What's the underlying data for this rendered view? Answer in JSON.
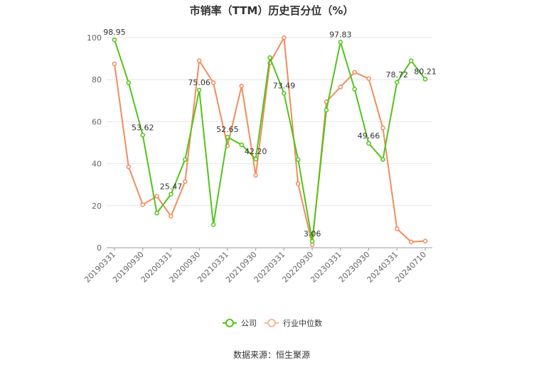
{
  "chart_data": {
    "type": "line",
    "title": "市销率（TTM）历史百分位（%）",
    "ylim": [
      0,
      100
    ],
    "yticks": [
      0,
      20,
      40,
      60,
      80,
      100
    ],
    "grid": true,
    "legend_position": "bottom",
    "x_tick_labels": [
      "20190331",
      "20190930",
      "20200331",
      "20200930",
      "20210331",
      "20210930",
      "20220331",
      "20220930",
      "20230331",
      "20230930",
      "20240331",
      "20240710"
    ],
    "x_tick_positions": [
      0,
      2,
      4,
      6,
      8,
      10,
      12,
      14,
      16,
      18,
      20,
      22
    ],
    "series": [
      {
        "name": "公司",
        "color": "#52c41a",
        "values": [
          98.95,
          78.5,
          53.62,
          16.5,
          25.47,
          42.0,
          75.06,
          11.0,
          52.65,
          49.0,
          42.2,
          90.5,
          73.49,
          42.0,
          3.06,
          65.5,
          97.83,
          75.5,
          49.66,
          42.0,
          78.72,
          89.0,
          80.21
        ],
        "labels": {
          "0": "98.95",
          "2": "53.62",
          "4": "25.47",
          "6": "75.06",
          "8": "52.65",
          "10": "42.20",
          "12": "73.49",
          "14": "3.06",
          "16": "97.83",
          "18": "49.66",
          "20": "78.72",
          "22": "80.21"
        }
      },
      {
        "name": "行业中位数",
        "color": "#f28c5c",
        "values": [
          87.5,
          38.5,
          20.5,
          24.5,
          15.0,
          31.5,
          89.0,
          78.5,
          48.5,
          77.0,
          34.5,
          88.0,
          100.0,
          30.5,
          1.5,
          69.5,
          76.5,
          83.5,
          80.5,
          57.0,
          9.0,
          2.8,
          3.2
        ]
      }
    ]
  },
  "legend": {
    "company_label": "公司",
    "industry_label": "行业中位数"
  },
  "source_text": "数据来源：恒生聚源"
}
